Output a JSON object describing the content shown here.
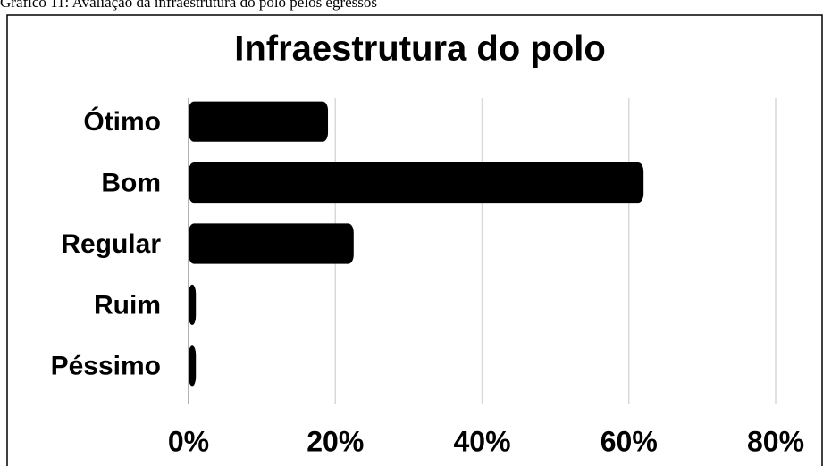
{
  "caption": "Gráfico 11: Avaliação da infraestrutura do polo pelos egressos",
  "chart_data": {
    "type": "bar",
    "orientation": "horizontal",
    "title": "Infraestrutura do polo",
    "categories": [
      "Ótimo",
      "Bom",
      "Regular",
      "Ruim",
      "Péssimo"
    ],
    "values": [
      19,
      62,
      22.5,
      1,
      1
    ],
    "color": "#000000",
    "xlim": [
      0,
      80
    ],
    "xticks": [
      {
        "value": 0,
        "label": "0%"
      },
      {
        "value": 20,
        "label": "20%"
      },
      {
        "value": 40,
        "label": "40%"
      },
      {
        "value": 60,
        "label": "60%"
      },
      {
        "value": 80,
        "label": "80%"
      }
    ],
    "grid": true
  }
}
